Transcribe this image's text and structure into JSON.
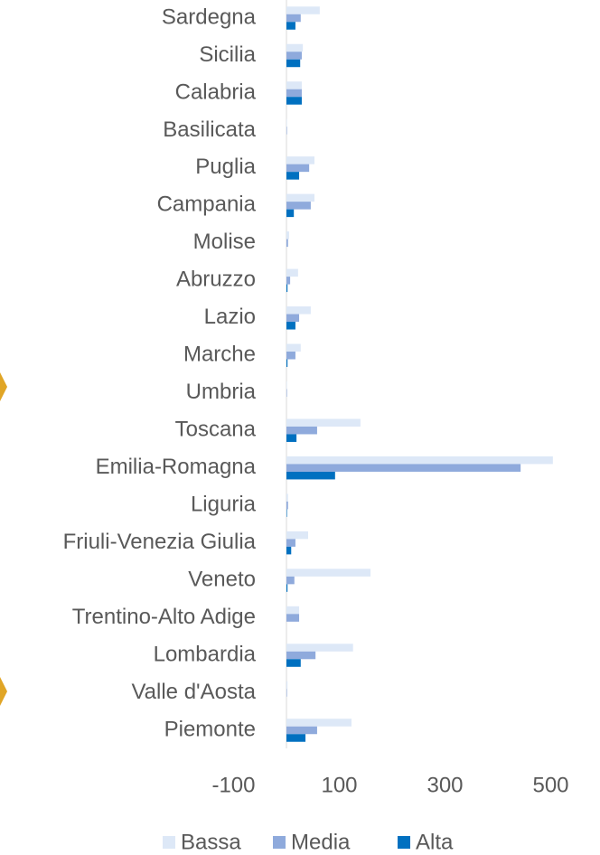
{
  "chart_data": {
    "type": "bar",
    "orientation": "horizontal",
    "categories": [
      "Piemonte",
      "Valle d'Aosta",
      "Lombardia",
      "Trentino-Alto Adige",
      "Veneto",
      "Friuli-Venezia Giulia",
      "Liguria",
      "Emilia-Romagna",
      "Toscana",
      "Umbria",
      "Marche",
      "Lazio",
      "Abruzzo",
      "Molise",
      "Campania",
      "Puglia",
      "Basilicata",
      "Calabria",
      "Sicilia",
      "Sardegna"
    ],
    "series": [
      {
        "name": "Bassa",
        "color": "#dde8f7",
        "values": [
          123,
          2,
          126,
          24,
          159,
          41,
          3,
          504,
          140,
          1,
          27,
          46,
          22,
          5,
          53,
          53,
          1,
          29,
          31,
          63
        ]
      },
      {
        "name": "Media",
        "color": "#8faadc",
        "values": [
          58,
          1,
          55,
          24,
          15,
          17,
          3,
          443,
          58,
          1,
          17,
          24,
          7,
          3,
          46,
          43,
          1,
          29,
          29,
          27
        ]
      },
      {
        "name": "Alta",
        "color": "#0070c0",
        "values": [
          36,
          0,
          27,
          0,
          2,
          9,
          1,
          92,
          19,
          0,
          2,
          17,
          2,
          0,
          14,
          24,
          0,
          29,
          26,
          17
        ]
      }
    ],
    "xlim": [
      -100,
      500
    ],
    "xticks": [
      -100,
      100,
      300,
      500
    ],
    "legend": "bottom"
  }
}
